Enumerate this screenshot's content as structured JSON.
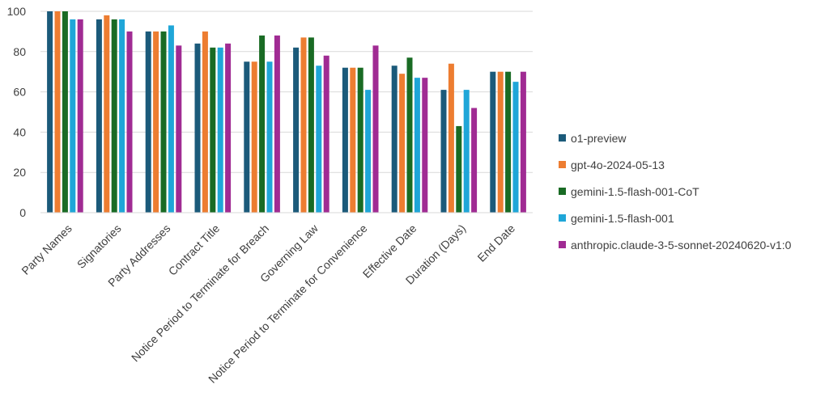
{
  "chart_data": {
    "type": "bar",
    "categories": [
      "Party Names",
      "Signatories",
      "Party Addresses",
      "Contract Title",
      "Notice Period to Terminate for Breach",
      "Governing Law",
      "Notice Period to Terminate for Convenience",
      "Effective Date",
      "Duration (Days)",
      "End Date"
    ],
    "series": [
      {
        "name": "o1-preview",
        "color": "#1b5a7a",
        "values": [
          100,
          96,
          90,
          84,
          75,
          82,
          72,
          73,
          61,
          70
        ]
      },
      {
        "name": "gpt-4o-2024-05-13",
        "color": "#ed7d31",
        "values": [
          100,
          98,
          90,
          90,
          75,
          87,
          72,
          69,
          74,
          70
        ]
      },
      {
        "name": "gemini-1.5-flash-001-CoT",
        "color": "#196b24",
        "values": [
          100,
          96,
          90,
          82,
          88,
          87,
          72,
          77,
          43,
          70
        ]
      },
      {
        "name": "gemini-1.5-flash-001",
        "color": "#1fa6d8",
        "values": [
          96,
          96,
          93,
          82,
          75,
          73,
          61,
          67,
          61,
          65
        ]
      },
      {
        "name": "anthropic.claude-3-5-sonnet-20240620-v1:0",
        "color": "#a02b93",
        "values": [
          96,
          90,
          83,
          84,
          88,
          78,
          83,
          67,
          52,
          70
        ]
      }
    ],
    "y_ticks": [
      "0",
      "20",
      "40",
      "60",
      "80",
      "100"
    ],
    "ylim": [
      0,
      100
    ],
    "title": "",
    "xlabel": "",
    "ylabel": "",
    "grid": true,
    "legend_position": "right"
  }
}
